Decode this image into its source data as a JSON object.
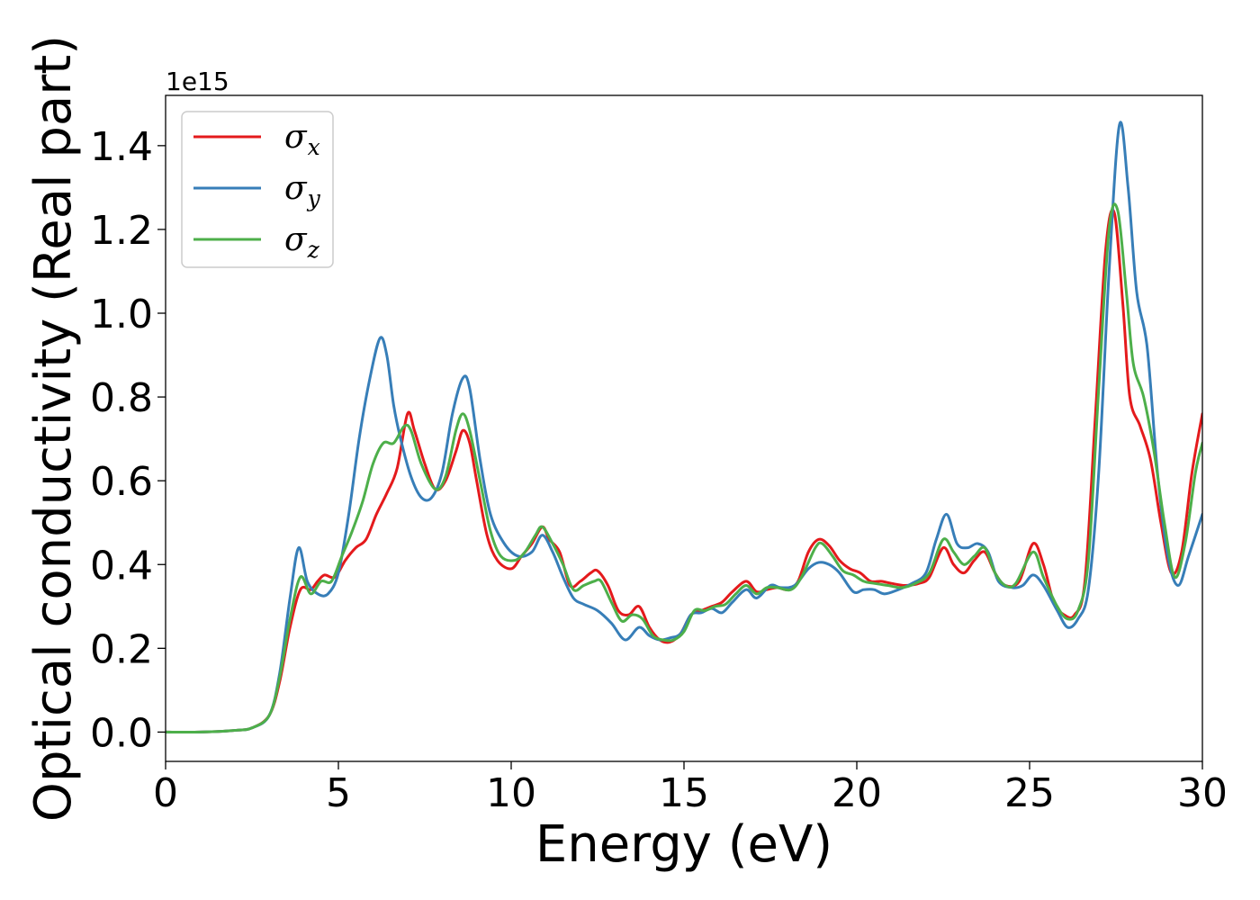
{
  "chart_data": {
    "type": "line",
    "title": "",
    "xlabel": "Energy (eV)",
    "ylabel": "Optical conductivity (Real part)",
    "y_offset_label": "1e15",
    "xlim": [
      0,
      30
    ],
    "ylim": [
      -0.07,
      1.52
    ],
    "xticks": [
      0,
      5,
      10,
      15,
      20,
      25,
      30
    ],
    "yticks": [
      0.0,
      0.2,
      0.4,
      0.6,
      0.8,
      1.0,
      1.2,
      1.4
    ],
    "xtick_labels": [
      "0",
      "5",
      "10",
      "15",
      "20",
      "25",
      "30"
    ],
    "ytick_labels": [
      "0.0",
      "0.2",
      "0.4",
      "0.6",
      "0.8",
      "1.0",
      "1.2",
      "1.4"
    ],
    "grid": false,
    "legend_position": "top-left",
    "series": [
      {
        "name": "σx",
        "name_base": "σ",
        "name_sub": "x",
        "color": "#e41a1c",
        "points": [
          [
            0,
            0
          ],
          [
            1,
            0
          ],
          [
            2,
            0.004
          ],
          [
            2.5,
            0.01
          ],
          [
            3,
            0.04
          ],
          [
            3.3,
            0.12
          ],
          [
            3.6,
            0.25
          ],
          [
            3.9,
            0.34
          ],
          [
            4.2,
            0.34
          ],
          [
            4.4,
            0.36
          ],
          [
            4.6,
            0.375
          ],
          [
            4.9,
            0.37
          ],
          [
            5.2,
            0.41
          ],
          [
            5.5,
            0.44
          ],
          [
            5.8,
            0.46
          ],
          [
            6.1,
            0.52
          ],
          [
            6.4,
            0.57
          ],
          [
            6.7,
            0.63
          ],
          [
            7.0,
            0.76
          ],
          [
            7.2,
            0.72
          ],
          [
            7.5,
            0.64
          ],
          [
            7.8,
            0.58
          ],
          [
            8.1,
            0.6
          ],
          [
            8.4,
            0.67
          ],
          [
            8.6,
            0.72
          ],
          [
            8.8,
            0.69
          ],
          [
            9.0,
            0.6
          ],
          [
            9.3,
            0.47
          ],
          [
            9.6,
            0.41
          ],
          [
            10.0,
            0.39
          ],
          [
            10.3,
            0.42
          ],
          [
            10.6,
            0.45
          ],
          [
            10.9,
            0.49
          ],
          [
            11.1,
            0.46
          ],
          [
            11.4,
            0.43
          ],
          [
            11.7,
            0.35
          ],
          [
            12.0,
            0.36
          ],
          [
            12.3,
            0.38
          ],
          [
            12.5,
            0.385
          ],
          [
            12.8,
            0.35
          ],
          [
            13.1,
            0.29
          ],
          [
            13.4,
            0.28
          ],
          [
            13.7,
            0.3
          ],
          [
            14.0,
            0.25
          ],
          [
            14.3,
            0.22
          ],
          [
            14.6,
            0.215
          ],
          [
            14.9,
            0.235
          ],
          [
            15.2,
            0.28
          ],
          [
            15.5,
            0.29
          ],
          [
            15.8,
            0.3
          ],
          [
            16.1,
            0.31
          ],
          [
            16.4,
            0.335
          ],
          [
            16.8,
            0.36
          ],
          [
            17.1,
            0.335
          ],
          [
            17.4,
            0.34
          ],
          [
            17.7,
            0.345
          ],
          [
            18.0,
            0.34
          ],
          [
            18.3,
            0.36
          ],
          [
            18.6,
            0.43
          ],
          [
            18.9,
            0.46
          ],
          [
            19.2,
            0.445
          ],
          [
            19.5,
            0.41
          ],
          [
            19.8,
            0.39
          ],
          [
            20.1,
            0.38
          ],
          [
            20.4,
            0.36
          ],
          [
            20.7,
            0.36
          ],
          [
            21.0,
            0.355
          ],
          [
            21.4,
            0.35
          ],
          [
            21.8,
            0.355
          ],
          [
            22.1,
            0.37
          ],
          [
            22.5,
            0.44
          ],
          [
            22.8,
            0.4
          ],
          [
            23.1,
            0.38
          ],
          [
            23.4,
            0.41
          ],
          [
            23.7,
            0.43
          ],
          [
            24.0,
            0.38
          ],
          [
            24.3,
            0.35
          ],
          [
            24.7,
            0.36
          ],
          [
            25.1,
            0.45
          ],
          [
            25.4,
            0.4
          ],
          [
            25.7,
            0.31
          ],
          [
            26.0,
            0.28
          ],
          [
            26.3,
            0.28
          ],
          [
            26.6,
            0.36
          ],
          [
            26.9,
            0.75
          ],
          [
            27.2,
            1.15
          ],
          [
            27.45,
            1.24
          ],
          [
            27.7,
            1.02
          ],
          [
            27.9,
            0.8
          ],
          [
            28.2,
            0.73
          ],
          [
            28.5,
            0.65
          ],
          [
            28.8,
            0.5
          ],
          [
            29.1,
            0.38
          ],
          [
            29.4,
            0.43
          ],
          [
            29.7,
            0.62
          ],
          [
            30.0,
            0.76
          ]
        ]
      },
      {
        "name": "σy",
        "name_base": "σ",
        "name_sub": "y",
        "color": "#377eb8",
        "points": [
          [
            0,
            0
          ],
          [
            1,
            0
          ],
          [
            2,
            0.004
          ],
          [
            2.5,
            0.01
          ],
          [
            3,
            0.04
          ],
          [
            3.3,
            0.14
          ],
          [
            3.6,
            0.32
          ],
          [
            3.85,
            0.44
          ],
          [
            4.1,
            0.36
          ],
          [
            4.4,
            0.33
          ],
          [
            4.7,
            0.33
          ],
          [
            5.0,
            0.38
          ],
          [
            5.3,
            0.52
          ],
          [
            5.6,
            0.7
          ],
          [
            5.9,
            0.84
          ],
          [
            6.2,
            0.94
          ],
          [
            6.4,
            0.9
          ],
          [
            6.6,
            0.78
          ],
          [
            6.8,
            0.7
          ],
          [
            7.1,
            0.61
          ],
          [
            7.4,
            0.56
          ],
          [
            7.7,
            0.56
          ],
          [
            8.0,
            0.62
          ],
          [
            8.3,
            0.76
          ],
          [
            8.6,
            0.845
          ],
          [
            8.8,
            0.82
          ],
          [
            9.1,
            0.65
          ],
          [
            9.4,
            0.52
          ],
          [
            9.8,
            0.45
          ],
          [
            10.2,
            0.42
          ],
          [
            10.6,
            0.43
          ],
          [
            10.9,
            0.47
          ],
          [
            11.2,
            0.43
          ],
          [
            11.5,
            0.37
          ],
          [
            11.8,
            0.32
          ],
          [
            12.1,
            0.305
          ],
          [
            12.5,
            0.29
          ],
          [
            12.9,
            0.26
          ],
          [
            13.3,
            0.22
          ],
          [
            13.7,
            0.25
          ],
          [
            14.0,
            0.23
          ],
          [
            14.3,
            0.22
          ],
          [
            14.6,
            0.225
          ],
          [
            14.9,
            0.235
          ],
          [
            15.2,
            0.28
          ],
          [
            15.5,
            0.285
          ],
          [
            15.8,
            0.295
          ],
          [
            16.1,
            0.285
          ],
          [
            16.4,
            0.31
          ],
          [
            16.8,
            0.34
          ],
          [
            17.1,
            0.32
          ],
          [
            17.5,
            0.35
          ],
          [
            17.8,
            0.345
          ],
          [
            18.2,
            0.35
          ],
          [
            18.6,
            0.39
          ],
          [
            18.9,
            0.405
          ],
          [
            19.2,
            0.4
          ],
          [
            19.5,
            0.38
          ],
          [
            19.9,
            0.335
          ],
          [
            20.2,
            0.34
          ],
          [
            20.5,
            0.34
          ],
          [
            20.8,
            0.33
          ],
          [
            21.2,
            0.34
          ],
          [
            21.6,
            0.355
          ],
          [
            22.0,
            0.38
          ],
          [
            22.3,
            0.46
          ],
          [
            22.6,
            0.52
          ],
          [
            22.9,
            0.45
          ],
          [
            23.2,
            0.44
          ],
          [
            23.5,
            0.45
          ],
          [
            23.8,
            0.43
          ],
          [
            24.1,
            0.36
          ],
          [
            24.5,
            0.345
          ],
          [
            24.8,
            0.35
          ],
          [
            25.1,
            0.375
          ],
          [
            25.4,
            0.35
          ],
          [
            25.8,
            0.29
          ],
          [
            26.1,
            0.25
          ],
          [
            26.4,
            0.27
          ],
          [
            26.7,
            0.34
          ],
          [
            27.0,
            0.62
          ],
          [
            27.3,
            1.1
          ],
          [
            27.6,
            1.45
          ],
          [
            27.85,
            1.3
          ],
          [
            28.1,
            1.05
          ],
          [
            28.4,
            0.92
          ],
          [
            28.7,
            0.62
          ],
          [
            29.0,
            0.42
          ],
          [
            29.3,
            0.35
          ],
          [
            29.6,
            0.42
          ],
          [
            30.0,
            0.52
          ]
        ]
      },
      {
        "name": "σz",
        "name_base": "σ",
        "name_sub": "z",
        "color": "#4daf4a",
        "points": [
          [
            0,
            0
          ],
          [
            1,
            0
          ],
          [
            2,
            0.004
          ],
          [
            2.5,
            0.01
          ],
          [
            3,
            0.04
          ],
          [
            3.3,
            0.13
          ],
          [
            3.6,
            0.27
          ],
          [
            3.9,
            0.37
          ],
          [
            4.2,
            0.33
          ],
          [
            4.5,
            0.36
          ],
          [
            4.8,
            0.36
          ],
          [
            5.1,
            0.42
          ],
          [
            5.4,
            0.48
          ],
          [
            5.7,
            0.55
          ],
          [
            6.0,
            0.64
          ],
          [
            6.3,
            0.69
          ],
          [
            6.6,
            0.69
          ],
          [
            6.9,
            0.73
          ],
          [
            7.1,
            0.72
          ],
          [
            7.4,
            0.64
          ],
          [
            7.8,
            0.58
          ],
          [
            8.1,
            0.61
          ],
          [
            8.4,
            0.72
          ],
          [
            8.6,
            0.76
          ],
          [
            8.8,
            0.72
          ],
          [
            9.1,
            0.6
          ],
          [
            9.4,
            0.48
          ],
          [
            9.7,
            0.42
          ],
          [
            10.1,
            0.41
          ],
          [
            10.4,
            0.43
          ],
          [
            10.7,
            0.47
          ],
          [
            10.9,
            0.49
          ],
          [
            11.2,
            0.45
          ],
          [
            11.5,
            0.4
          ],
          [
            11.8,
            0.34
          ],
          [
            12.1,
            0.35
          ],
          [
            12.4,
            0.36
          ],
          [
            12.6,
            0.36
          ],
          [
            12.9,
            0.31
          ],
          [
            13.2,
            0.265
          ],
          [
            13.5,
            0.28
          ],
          [
            13.8,
            0.27
          ],
          [
            14.1,
            0.23
          ],
          [
            14.4,
            0.22
          ],
          [
            14.7,
            0.22
          ],
          [
            15.0,
            0.24
          ],
          [
            15.3,
            0.29
          ],
          [
            15.6,
            0.29
          ],
          [
            15.9,
            0.3
          ],
          [
            16.2,
            0.305
          ],
          [
            16.5,
            0.33
          ],
          [
            16.8,
            0.35
          ],
          [
            17.1,
            0.33
          ],
          [
            17.4,
            0.345
          ],
          [
            17.7,
            0.345
          ],
          [
            18.1,
            0.34
          ],
          [
            18.4,
            0.37
          ],
          [
            18.8,
            0.44
          ],
          [
            19.0,
            0.45
          ],
          [
            19.3,
            0.42
          ],
          [
            19.6,
            0.385
          ],
          [
            19.9,
            0.375
          ],
          [
            20.2,
            0.36
          ],
          [
            20.5,
            0.355
          ],
          [
            20.9,
            0.35
          ],
          [
            21.3,
            0.345
          ],
          [
            21.7,
            0.355
          ],
          [
            22.1,
            0.38
          ],
          [
            22.5,
            0.46
          ],
          [
            22.8,
            0.43
          ],
          [
            23.1,
            0.4
          ],
          [
            23.4,
            0.42
          ],
          [
            23.7,
            0.44
          ],
          [
            24.0,
            0.38
          ],
          [
            24.3,
            0.35
          ],
          [
            24.6,
            0.355
          ],
          [
            25.1,
            0.43
          ],
          [
            25.4,
            0.37
          ],
          [
            25.8,
            0.3
          ],
          [
            26.1,
            0.27
          ],
          [
            26.4,
            0.29
          ],
          [
            26.7,
            0.41
          ],
          [
            27.0,
            0.82
          ],
          [
            27.3,
            1.2
          ],
          [
            27.55,
            1.245
          ],
          [
            27.8,
            1.05
          ],
          [
            28.0,
            0.88
          ],
          [
            28.3,
            0.8
          ],
          [
            28.6,
            0.67
          ],
          [
            28.9,
            0.5
          ],
          [
            29.2,
            0.37
          ],
          [
            29.5,
            0.45
          ],
          [
            29.8,
            0.62
          ],
          [
            30.0,
            0.69
          ]
        ]
      }
    ]
  }
}
